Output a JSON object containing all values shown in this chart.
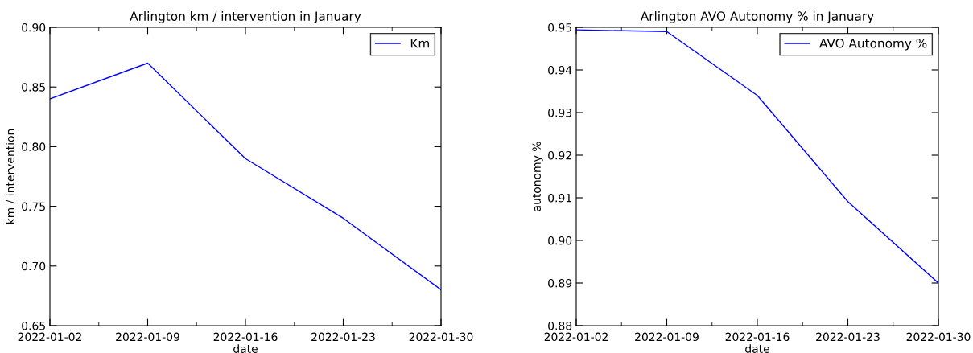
{
  "chart_data": [
    {
      "type": "line",
      "title": "Arlington km / intervention in January",
      "xlabel": "date",
      "ylabel": "km / intervention",
      "x": [
        "2022-01-02",
        "2022-01-09",
        "2022-01-16",
        "2022-01-23",
        "2022-01-30"
      ],
      "series": [
        {
          "name": "Km",
          "color": "#0000ff",
          "values": [
            0.84,
            0.87,
            0.79,
            0.74,
            0.68
          ]
        }
      ],
      "xlim": [
        "2022-01-02",
        "2022-01-30"
      ],
      "xticks": [
        "2022-01-02",
        "2022-01-09",
        "2022-01-16",
        "2022-01-23",
        "2022-01-30"
      ],
      "ylim": [
        0.65,
        0.9
      ],
      "yticks": [
        0.65,
        {
          "value": 0.7,
          "label": "0.70"
        },
        0.75,
        {
          "value": 0.8,
          "label": "0.80"
        },
        0.85,
        {
          "value": 0.9,
          "label": "0.90"
        }
      ],
      "legend": "top right",
      "grid": false
    },
    {
      "type": "line",
      "title": "Arlington AVO Autonomy % in January",
      "xlabel": "date",
      "ylabel": "autonomy %",
      "x": [
        "2022-01-02",
        "2022-01-09",
        "2022-01-16",
        "2022-01-23",
        "2022-01-30"
      ],
      "series": [
        {
          "name": "AVO Autonomy %",
          "color": "#0000ff",
          "values": [
            0.9494,
            0.949,
            0.934,
            0.9091,
            0.89
          ]
        }
      ],
      "xlim": [
        "2022-01-02",
        "2022-01-30"
      ],
      "xticks": [
        "2022-01-02",
        "2022-01-09",
        "2022-01-16",
        "2022-01-23",
        "2022-01-30"
      ],
      "ylim": [
        0.88,
        0.95
      ],
      "yticks": [
        0.88,
        0.89,
        {
          "value": 0.9,
          "label": "0.90"
        },
        0.91,
        0.92,
        0.93,
        0.94,
        0.95
      ],
      "legend": "top right",
      "grid": false
    }
  ]
}
